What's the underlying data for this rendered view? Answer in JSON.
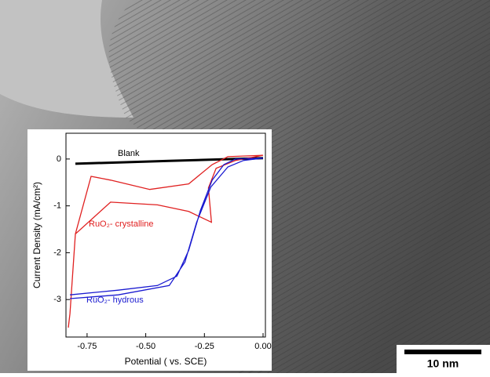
{
  "chart_data": {
    "type": "line",
    "x_label": "Potential ( vs. SCE)",
    "y_label": "Current Density (mA/cm²)",
    "xlim": [
      -0.84,
      0.01
    ],
    "ylim": [
      -3.8,
      0.55
    ],
    "xticks": [
      -0.75,
      {
        "value": -0.5,
        "label": "-0.50"
      },
      -0.25,
      {
        "value": 0,
        "label": "0.00"
      }
    ],
    "yticks": [
      -3,
      -2,
      -1,
      0
    ],
    "series": [
      {
        "name": "Blank",
        "color": "#000000",
        "x": [
          -0.8,
          -0.6,
          -0.4,
          -0.2,
          0.0
        ],
        "values": [
          -0.1,
          -0.07,
          -0.04,
          -0.01,
          0.02
        ]
      },
      {
        "name": "RuO₂- crystalline",
        "color": "#e02020",
        "x": [
          -0.83,
          -0.823,
          -0.8,
          -0.733,
          -0.65,
          -0.483,
          -0.317,
          -0.217,
          -0.15,
          0.0,
          -0.117,
          -0.2,
          -0.233,
          -0.22,
          -0.317,
          -0.45,
          -0.65,
          -0.8,
          -0.823
        ],
        "values": [
          -3.6,
          -3.3,
          -1.6,
          -0.37,
          -0.45,
          -0.65,
          -0.53,
          -0.12,
          0.05,
          0.08,
          -0.03,
          -0.2,
          -0.62,
          -1.35,
          -1.12,
          -0.98,
          -0.92,
          -1.6,
          -3.3
        ]
      },
      {
        "name": "RuO₂- hydrous",
        "color": "#1a1ad0",
        "x": [
          -0.823,
          -0.617,
          -0.45,
          -0.367,
          -0.317,
          -0.267,
          -0.217,
          -0.167,
          -0.117,
          0.0,
          -0.083,
          -0.15,
          -0.223,
          -0.283,
          -0.333,
          -0.4,
          -0.617,
          -0.823
        ],
        "values": [
          -2.9,
          -2.8,
          -2.7,
          -2.5,
          -1.95,
          -1.1,
          -0.45,
          -0.12,
          0.0,
          0.02,
          -0.03,
          -0.17,
          -0.6,
          -1.35,
          -2.2,
          -2.7,
          -2.9,
          -2.98
        ]
      }
    ]
  },
  "scale_bar": {
    "label": "10 nm"
  }
}
